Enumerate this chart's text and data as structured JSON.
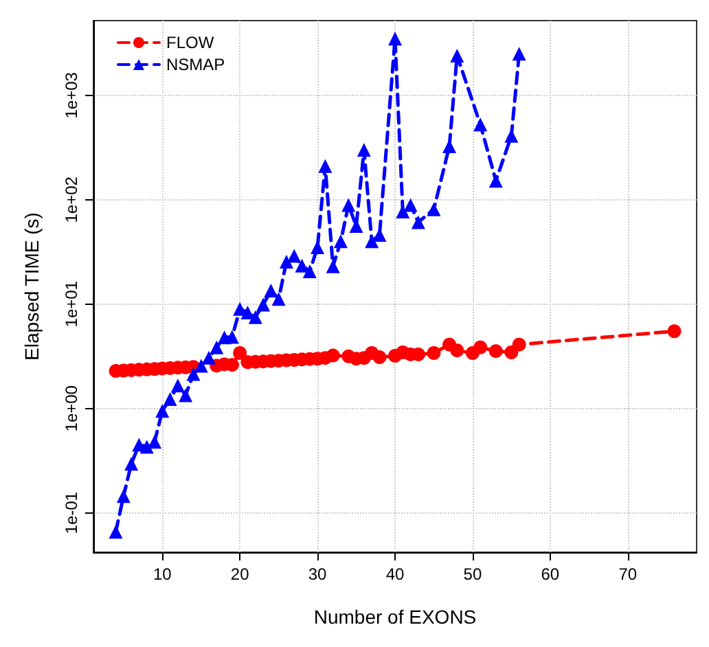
{
  "chart_data": {
    "type": "line",
    "xlabel": "Number of EXONS",
    "ylabel": "Elapsed TIME (s)",
    "log": "y",
    "grid": true,
    "legend": "top left",
    "line_style": "dashed",
    "xlim": [
      1.12,
      78.88
    ],
    "xticks": [
      10,
      20,
      30,
      40,
      50,
      60,
      70
    ],
    "ylim": [
      0.042,
      5200
    ],
    "yticks": [
      {
        "value": 0.1,
        "label": "1e-01"
      },
      {
        "value": 1,
        "label": "1e+00"
      },
      {
        "value": 10,
        "label": "1e+01"
      },
      {
        "value": 100,
        "label": "1e+02"
      },
      {
        "value": 1000,
        "label": "1e+03"
      }
    ],
    "series": [
      {
        "name": "FLOW",
        "color": "#ff0000",
        "marker": "circle",
        "x": [
          4,
          5,
          6,
          7,
          8,
          9,
          10,
          11,
          12,
          13,
          14,
          15,
          16,
          17,
          18,
          19,
          20,
          21,
          22,
          23,
          24,
          25,
          26,
          27,
          28,
          29,
          30,
          31,
          32,
          34,
          35,
          36,
          37,
          38,
          40,
          41,
          42,
          43,
          45,
          47,
          48,
          50,
          51,
          53,
          55,
          56,
          76
        ],
        "values": [
          2.29,
          2.31,
          2.33,
          2.35,
          2.37,
          2.39,
          2.42,
          2.44,
          2.46,
          2.48,
          2.5,
          null,
          null,
          2.57,
          2.65,
          2.62,
          3.4,
          2.78,
          2.8,
          2.82,
          2.85,
          2.87,
          2.9,
          2.92,
          2.95,
          2.98,
          3.0,
          3.05,
          3.22,
          3.16,
          3.0,
          3.05,
          3.4,
          3.1,
          3.2,
          3.45,
          3.3,
          3.3,
          3.4,
          4.1,
          3.6,
          3.4,
          3.85,
          3.55,
          3.45,
          4.1,
          5.5
        ]
      },
      {
        "name": "NSMAP",
        "color": "#0000ff",
        "marker": "triangle",
        "x": [
          4,
          5,
          6,
          7,
          8,
          9,
          10,
          11,
          12,
          13,
          14,
          15,
          16,
          17,
          18,
          19,
          20,
          21,
          22,
          23,
          24,
          25,
          26,
          27,
          28,
          29,
          30,
          31,
          32,
          33,
          34,
          35,
          36,
          37,
          38,
          40,
          41,
          42,
          43,
          45,
          47,
          48,
          51,
          53,
          55,
          56
        ],
        "values": [
          0.066,
          0.145,
          0.295,
          0.45,
          0.43,
          0.48,
          0.95,
          1.23,
          1.66,
          1.34,
          2.14,
          2.57,
          3.07,
          3.85,
          4.8,
          4.85,
          9.0,
          8.3,
          7.5,
          9.9,
          13.5,
          11.2,
          25.5,
          29,
          23.4,
          20.6,
          35,
          210,
          23,
          40,
          89,
          56,
          300,
          40,
          46,
          3500,
          77,
          89,
          61,
          81,
          325,
          2400,
          525,
          152,
          410,
          2500
        ]
      }
    ]
  }
}
